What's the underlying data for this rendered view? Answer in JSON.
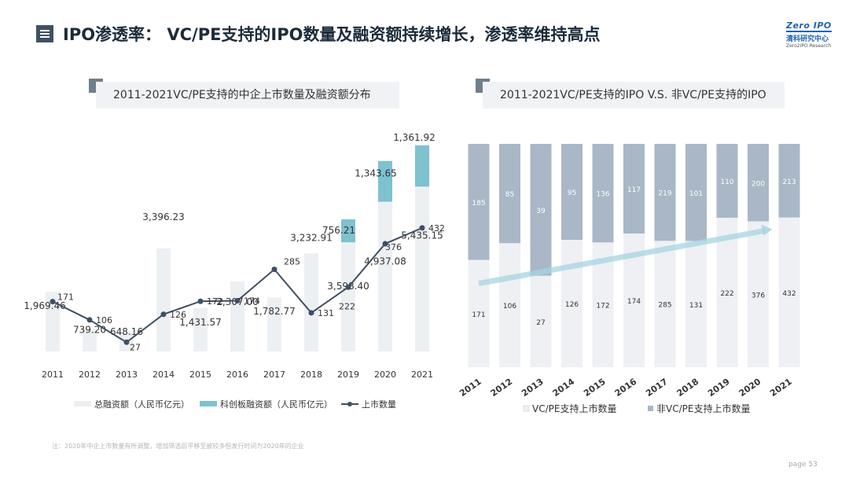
{
  "header": {
    "title": "IPO渗透率： VC/PE支持的IPO数量及融资额持续增长，渗透率维持高点"
  },
  "logo": {
    "mark": "Zero IPO",
    "cn": "清科研究中心",
    "en": "Zero2IPO Research"
  },
  "left_panel": {
    "title": "2011-2021VC/PE支持的中企上市数量及融资额分布"
  },
  "right_panel": {
    "title": "2011-2021VC/PE支持的IPO V.S. 非VC/PE支持的IPO"
  },
  "footnote": "注：2020年中企上市数量有所调整，增加筛选层平移至披较多但发行时间为2020年的企业",
  "page_label": "page 53",
  "chart_data": [
    {
      "type": "bar",
      "categories": [
        "2011",
        "2012",
        "2013",
        "2014",
        "2015",
        "2016",
        "2017",
        "2018",
        "2019",
        "2020",
        "2021"
      ],
      "series": [
        {
          "name": "总融资额（人民币亿元）",
          "kind": "bar",
          "color": "#edf0f3",
          "values": [
            1969.46,
            739.2,
            648.16,
            3396.23,
            1431.57,
            2307.0,
            1782.77,
            3232.91,
            3598.4,
            4937.08,
            5435.15
          ],
          "labels": [
            "1,969.46",
            "739.20",
            "648.16",
            "3,396.23",
            "1,431.57",
            "2,307.00",
            "1,782.77",
            "3,232.91",
            "3,598.40",
            "4,937.08",
            "5,435.15"
          ]
        },
        {
          "name": "科创板融资额（人民币亿元）",
          "kind": "bar-stack",
          "color": "#7ec1cf",
          "values": [
            0,
            0,
            0,
            0,
            0,
            0,
            0,
            0,
            756.21,
            1343.65,
            1361.92
          ],
          "labels": [
            "",
            "",
            "",
            "",
            "",
            "",
            "",
            "",
            "756.21",
            "1,343.65",
            "1,361.92"
          ]
        },
        {
          "name": "上市数量",
          "kind": "line",
          "color": "#3d4f63",
          "values": [
            171,
            106,
            27,
            126,
            172,
            174,
            285,
            131,
            222,
            376,
            432
          ]
        }
      ],
      "ylim": [
        0,
        7000
      ]
    },
    {
      "type": "bar",
      "stacked_percent": true,
      "categories": [
        "2011",
        "2012",
        "2013",
        "2014",
        "2015",
        "2016",
        "2017",
        "2018",
        "2019",
        "2020",
        "2021"
      ],
      "series": [
        {
          "name": "VC/PE支持上市数量",
          "color": "#eef0f3",
          "values": [
            171,
            106,
            27,
            126,
            172,
            174,
            285,
            131,
            222,
            376,
            432
          ]
        },
        {
          "name": "非VC/PE支持上市数量",
          "color": "#a9b7c7",
          "values": [
            185,
            85,
            39,
            95,
            136,
            117,
            219,
            101,
            110,
            200,
            213
          ]
        }
      ]
    }
  ]
}
